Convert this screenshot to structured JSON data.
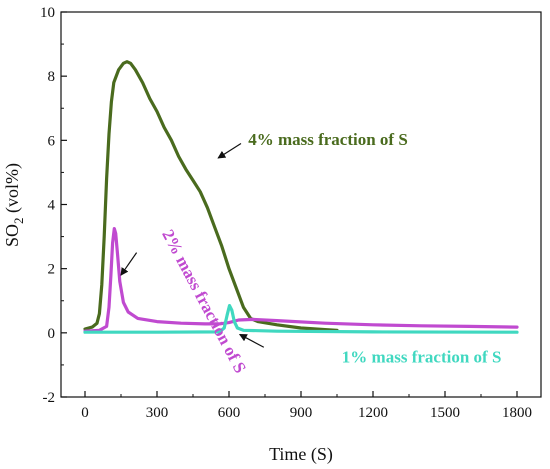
{
  "chart_data": {
    "type": "line",
    "xlabel": "Time (S)",
    "ylabel": "SO2 (vol%)",
    "ylabel_main": "SO",
    "ylabel_sub": "2",
    "ylabel_tail": " (vol%)",
    "xlim": [
      -100,
      1900
    ],
    "ylim": [
      -2,
      10
    ],
    "x_ticks": [
      0,
      300,
      600,
      900,
      1200,
      1500,
      1800
    ],
    "y_ticks": [
      -2,
      0,
      2,
      4,
      6,
      8,
      10
    ],
    "series": [
      {
        "name": "4% mass fraction of S",
        "color": "#4a6b1e",
        "points": [
          [
            0,
            0.12
          ],
          [
            30,
            0.18
          ],
          [
            50,
            0.3
          ],
          [
            60,
            0.6
          ],
          [
            70,
            1.5
          ],
          [
            80,
            3.0
          ],
          [
            90,
            4.8
          ],
          [
            100,
            6.2
          ],
          [
            110,
            7.2
          ],
          [
            120,
            7.8
          ],
          [
            140,
            8.2
          ],
          [
            160,
            8.4
          ],
          [
            175,
            8.45
          ],
          [
            190,
            8.4
          ],
          [
            210,
            8.2
          ],
          [
            240,
            7.8
          ],
          [
            270,
            7.3
          ],
          [
            300,
            6.9
          ],
          [
            330,
            6.4
          ],
          [
            360,
            6.0
          ],
          [
            390,
            5.5
          ],
          [
            420,
            5.1
          ],
          [
            450,
            4.75
          ],
          [
            480,
            4.4
          ],
          [
            510,
            3.9
          ],
          [
            540,
            3.3
          ],
          [
            570,
            2.7
          ],
          [
            600,
            2.0
          ],
          [
            630,
            1.4
          ],
          [
            660,
            0.8
          ],
          [
            690,
            0.45
          ],
          [
            720,
            0.35
          ],
          [
            800,
            0.25
          ],
          [
            900,
            0.15
          ],
          [
            1000,
            0.1
          ],
          [
            1050,
            0.08
          ]
        ]
      },
      {
        "name": "2% mass fraction of S",
        "color": "#c04ad0",
        "points": [
          [
            0,
            0.05
          ],
          [
            60,
            0.08
          ],
          [
            90,
            0.2
          ],
          [
            100,
            0.8
          ],
          [
            108,
            1.8
          ],
          [
            115,
            2.8
          ],
          [
            122,
            3.25
          ],
          [
            128,
            3.1
          ],
          [
            135,
            2.5
          ],
          [
            145,
            1.6
          ],
          [
            160,
            0.95
          ],
          [
            180,
            0.65
          ],
          [
            220,
            0.45
          ],
          [
            300,
            0.35
          ],
          [
            400,
            0.3
          ],
          [
            500,
            0.28
          ],
          [
            560,
            0.28
          ],
          [
            600,
            0.32
          ],
          [
            640,
            0.4
          ],
          [
            700,
            0.42
          ],
          [
            800,
            0.38
          ],
          [
            1000,
            0.3
          ],
          [
            1200,
            0.25
          ],
          [
            1400,
            0.22
          ],
          [
            1600,
            0.2
          ],
          [
            1800,
            0.18
          ]
        ]
      },
      {
        "name": "1% mass fraction of S",
        "color": "#40d8c0",
        "points": [
          [
            0,
            0.02
          ],
          [
            300,
            0.02
          ],
          [
            560,
            0.03
          ],
          [
            580,
            0.15
          ],
          [
            592,
            0.55
          ],
          [
            602,
            0.85
          ],
          [
            612,
            0.7
          ],
          [
            622,
            0.35
          ],
          [
            635,
            0.15
          ],
          [
            660,
            0.08
          ],
          [
            800,
            0.05
          ],
          [
            1200,
            0.03
          ],
          [
            1800,
            0.02
          ]
        ]
      }
    ],
    "annotations": [
      {
        "text": "4% mass fraction of S",
        "color": "#4a6b1e",
        "x": 680,
        "y": 5.85,
        "rotate": 0,
        "arrow_from": [
          650,
          5.9
        ],
        "arrow_to": [
          555,
          5.45
        ]
      },
      {
        "text": "2% mass fraction of S",
        "color": "#c04ad0",
        "x": 320,
        "y": 3.1,
        "rotate": 62,
        "arrow_from": [
          215,
          2.5
        ],
        "arrow_to": [
          150,
          1.8
        ]
      },
      {
        "text": "1% mass fraction of S",
        "color": "#40d8c0",
        "x": 1070,
        "y": -0.92,
        "rotate": 0,
        "arrow_from": [
          745,
          -0.45
        ],
        "arrow_to": [
          645,
          -0.05
        ]
      }
    ]
  }
}
